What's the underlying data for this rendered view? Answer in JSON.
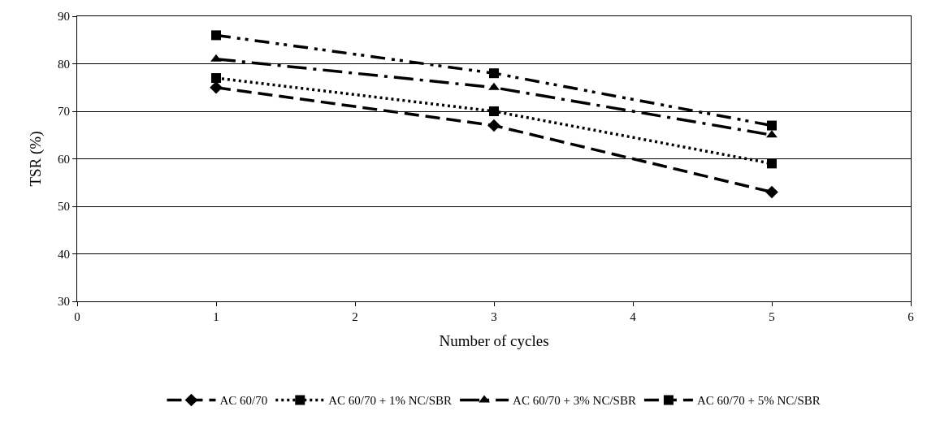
{
  "chart_data": {
    "type": "line",
    "xlabel": "Number of cycles",
    "ylabel": "TSR (%)",
    "x": [
      1,
      3,
      5
    ],
    "series": [
      {
        "name": "AC 60/70",
        "color": "#000000",
        "values": [
          75,
          67,
          53
        ],
        "marker": "diamond",
        "line_style": "dashed"
      },
      {
        "name": "AC 60/70 + 1% NC/SBR",
        "color": "#000000",
        "values": [
          77,
          70,
          59
        ],
        "marker": "square",
        "line_style": "dotted"
      },
      {
        "name": "AC 60/70 + 3% NC/SBR",
        "color": "#000000",
        "values": [
          81,
          75,
          65
        ],
        "marker": "triangle",
        "line_style": "dashdot"
      },
      {
        "name": "AC 60/70 + 5% NC/SBR",
        "color": "#000000",
        "values": [
          86,
          78,
          67
        ],
        "marker": "square",
        "line_style": "dashdotdot"
      }
    ],
    "xlim": [
      0,
      6
    ],
    "xticks": [
      0,
      1,
      2,
      3,
      4,
      5,
      6
    ],
    "ylim": [
      30,
      90
    ],
    "yticks": [
      30,
      40,
      50,
      60,
      70,
      80,
      90
    ],
    "grid": "y",
    "legend": "bottom"
  }
}
